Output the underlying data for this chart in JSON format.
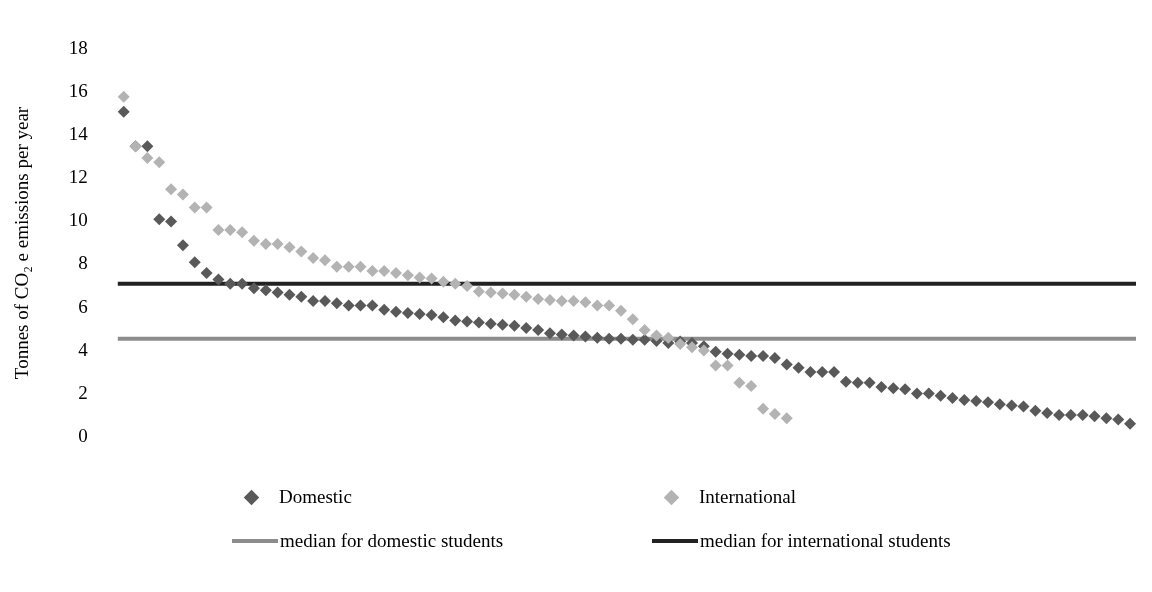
{
  "chart_data": {
    "type": "scatter",
    "ylabel": "Tonnes of CO₂ e emissions per year",
    "categories": [
      null,
      null,
      null,
      null,
      null,
      null,
      null,
      null,
      null,
      null,
      null,
      null,
      null,
      null,
      null,
      null,
      null,
      null,
      null,
      null,
      null,
      null,
      null,
      null,
      null,
      null,
      null,
      null,
      null,
      null,
      null,
      null,
      null,
      null,
      null,
      null,
      null,
      null,
      null,
      null,
      null,
      null,
      null,
      null,
      null,
      null,
      null,
      null,
      null,
      null,
      null,
      null,
      null,
      null,
      null,
      null,
      null,
      null,
      null,
      null,
      null,
      null,
      null,
      null,
      null,
      null,
      null,
      null,
      null,
      null,
      null,
      null,
      null,
      null,
      null,
      null,
      null,
      null,
      null,
      null,
      null,
      null,
      null,
      null,
      null,
      null
    ],
    "series": [
      {
        "name": "Domestic",
        "color": "#595959",
        "values": [
          15.1,
          13.5,
          13.5,
          10.1,
          10.0,
          8.9,
          8.1,
          7.6,
          7.3,
          7.1,
          7.1,
          6.9,
          6.8,
          6.7,
          6.6,
          6.5,
          6.3,
          6.3,
          6.2,
          6.1,
          6.1,
          6.1,
          5.9,
          5.8,
          5.75,
          5.7,
          5.65,
          5.55,
          5.4,
          5.35,
          5.3,
          5.25,
          5.2,
          5.15,
          5.05,
          4.95,
          4.8,
          4.75,
          4.7,
          4.65,
          4.6,
          4.55,
          4.55,
          4.5,
          4.5,
          4.45,
          4.35,
          4.42,
          4.35,
          4.2,
          3.95,
          3.85,
          3.8,
          3.75,
          3.75,
          3.65,
          3.35,
          3.2,
          3.0,
          3.0,
          3.0,
          2.55,
          2.5,
          2.5,
          2.3,
          2.25,
          2.2,
          2.0,
          2.0,
          1.9,
          1.8,
          1.7,
          1.65,
          1.6,
          1.5,
          1.45,
          1.4,
          1.2,
          1.1,
          1.0,
          1.0,
          1.0,
          0.95,
          0.85,
          0.8,
          0.6
        ]
      },
      {
        "name": "International",
        "color": "#b3b3b3",
        "values": [
          15.8,
          13.5,
          12.95,
          12.75,
          11.5,
          11.25,
          10.65,
          10.65,
          9.6,
          9.6,
          9.5,
          9.1,
          8.95,
          8.95,
          8.8,
          8.6,
          8.3,
          8.2,
          7.9,
          7.9,
          7.9,
          7.7,
          7.7,
          7.6,
          7.5,
          7.4,
          7.35,
          7.2,
          7.1,
          7.0,
          6.75,
          6.7,
          6.65,
          6.6,
          6.5,
          6.4,
          6.35,
          6.3,
          6.3,
          6.25,
          6.1,
          6.1,
          5.85,
          5.45,
          4.95,
          4.7,
          4.6,
          4.3,
          4.15,
          4.0,
          3.3,
          3.3,
          2.5,
          2.35,
          1.3,
          1.05,
          0.85,
          null,
          null,
          null,
          null,
          null,
          null,
          null,
          null,
          null,
          null,
          null,
          null,
          null,
          null,
          null,
          null,
          null,
          null,
          null,
          null,
          null,
          null,
          null,
          null,
          null,
          null,
          null,
          null,
          null
        ]
      }
    ],
    "ref_lines": [
      {
        "axis": "y",
        "value": 4.55,
        "label": "median for domestic students",
        "color": "#8c8c8c"
      },
      {
        "axis": "y",
        "value": 7.1,
        "label": "median for international students",
        "color": "#222222"
      }
    ],
    "ylim": [
      0,
      18
    ],
    "yticks": [
      0,
      2,
      4,
      6,
      8,
      10,
      12,
      14,
      16,
      18
    ],
    "grid": false,
    "legend": "bottom",
    "marker": "diamond"
  }
}
